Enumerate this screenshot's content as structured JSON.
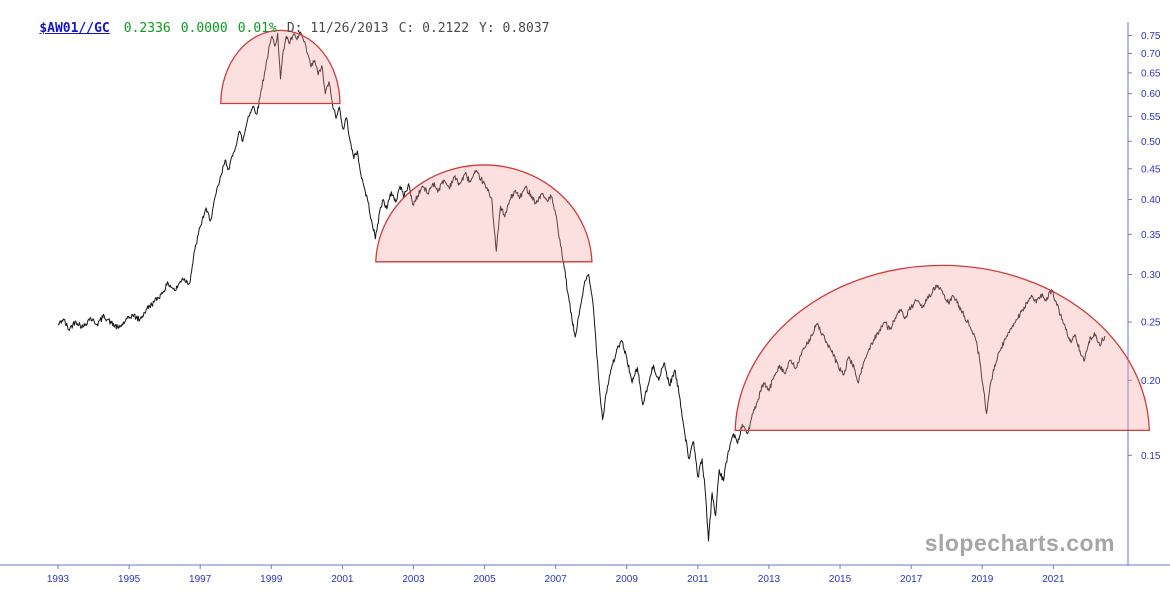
{
  "header": {
    "symbol": "$AW01//GC",
    "last": "0.2336",
    "change": "0.0000",
    "change_pct": "0.01%",
    "date": "D: 11/26/2013",
    "close": "C: 0.2122",
    "year_value": "Y: 0.8037",
    "symbol_color": "#1414c8",
    "quote_color": "#0a9a1e",
    "info_color": "#4a4a4a"
  },
  "watermark": {
    "text": "slopecharts.com",
    "color": "#a6a6a6"
  },
  "chart_data": {
    "type": "line",
    "symbol": "$AW01//GC",
    "y_scale": "log",
    "grid": false,
    "x_range": [
      1991.65,
      2023.1
    ],
    "y_range": [
      0.0985,
      0.772
    ],
    "x_ticks": [
      "1993",
      "1995",
      "1997",
      "1999",
      "2001",
      "2003",
      "2005",
      "2007",
      "2009",
      "2011",
      "2013",
      "2015",
      "2017",
      "2019",
      "2021"
    ],
    "y_ticks": [
      "0.75",
      "0.70",
      "0.65",
      "0.60",
      "0.55",
      "0.50",
      "0.45",
      "0.40",
      "0.35",
      "0.30",
      "0.25",
      "0.20",
      "0.15"
    ],
    "axis_color": "#6b79c8",
    "tick_label_color": "#2a35c0",
    "line_color": "#161616",
    "jitter": 0.011,
    "annotations": {
      "type": "domes",
      "stroke": "#d23a3a",
      "fill": "rgba(246,160,160,0.33)",
      "items": [
        {
          "x_start": 1997.58,
          "x_end": 2000.93,
          "base": 0.578,
          "peak": 0.765
        },
        {
          "x_start": 2001.94,
          "x_end": 2008.02,
          "base": 0.315,
          "peak": 0.462
        },
        {
          "x_start": 2012.05,
          "x_end": 2023.7,
          "base": 0.165,
          "peak": 0.315
        }
      ]
    },
    "points": [
      [
        1993.0,
        0.247
      ],
      [
        1993.15,
        0.253
      ],
      [
        1993.3,
        0.243
      ],
      [
        1993.5,
        0.251
      ],
      [
        1993.7,
        0.245
      ],
      [
        1993.9,
        0.254
      ],
      [
        1994.1,
        0.248
      ],
      [
        1994.3,
        0.256
      ],
      [
        1994.5,
        0.249
      ],
      [
        1994.7,
        0.244
      ],
      [
        1994.9,
        0.251
      ],
      [
        1995.1,
        0.257
      ],
      [
        1995.3,
        0.252
      ],
      [
        1995.5,
        0.263
      ],
      [
        1995.7,
        0.27
      ],
      [
        1995.9,
        0.278
      ],
      [
        1996.1,
        0.29
      ],
      [
        1996.3,
        0.282
      ],
      [
        1996.5,
        0.296
      ],
      [
        1996.7,
        0.29
      ],
      [
        1996.85,
        0.33
      ],
      [
        1997.0,
        0.36
      ],
      [
        1997.15,
        0.385
      ],
      [
        1997.3,
        0.37
      ],
      [
        1997.45,
        0.41
      ],
      [
        1997.6,
        0.44
      ],
      [
        1997.7,
        0.465
      ],
      [
        1997.8,
        0.45
      ],
      [
        1997.95,
        0.48
      ],
      [
        1998.1,
        0.52
      ],
      [
        1998.2,
        0.5
      ],
      [
        1998.35,
        0.55
      ],
      [
        1998.5,
        0.572
      ],
      [
        1998.6,
        0.556
      ],
      [
        1998.72,
        0.61
      ],
      [
        1998.82,
        0.655
      ],
      [
        1998.92,
        0.705
      ],
      [
        1999.02,
        0.748
      ],
      [
        1999.1,
        0.72
      ],
      [
        1999.18,
        0.757
      ],
      [
        1999.26,
        0.635
      ],
      [
        1999.34,
        0.71
      ],
      [
        1999.42,
        0.748
      ],
      [
        1999.52,
        0.728
      ],
      [
        1999.62,
        0.752
      ],
      [
        1999.72,
        0.738
      ],
      [
        1999.82,
        0.76
      ],
      [
        1999.92,
        0.732
      ],
      [
        2000.02,
        0.7
      ],
      [
        2000.12,
        0.665
      ],
      [
        2000.22,
        0.682
      ],
      [
        2000.32,
        0.645
      ],
      [
        2000.42,
        0.668
      ],
      [
        2000.52,
        0.6
      ],
      [
        2000.62,
        0.628
      ],
      [
        2000.72,
        0.578
      ],
      [
        2000.82,
        0.546
      ],
      [
        2000.92,
        0.57
      ],
      [
        2001.02,
        0.524
      ],
      [
        2001.12,
        0.547
      ],
      [
        2001.22,
        0.5
      ],
      [
        2001.32,
        0.468
      ],
      [
        2001.42,
        0.482
      ],
      [
        2001.52,
        0.44
      ],
      [
        2001.62,
        0.418
      ],
      [
        2001.72,
        0.396
      ],
      [
        2001.82,
        0.37
      ],
      [
        2001.93,
        0.344
      ],
      [
        2002.05,
        0.382
      ],
      [
        2002.15,
        0.4
      ],
      [
        2002.25,
        0.386
      ],
      [
        2002.38,
        0.412
      ],
      [
        2002.5,
        0.396
      ],
      [
        2002.62,
        0.421
      ],
      [
        2002.74,
        0.405
      ],
      [
        2002.86,
        0.425
      ],
      [
        2002.98,
        0.392
      ],
      [
        2003.12,
        0.406
      ],
      [
        2003.26,
        0.421
      ],
      [
        2003.4,
        0.409
      ],
      [
        2003.55,
        0.426
      ],
      [
        2003.7,
        0.414
      ],
      [
        2003.85,
        0.431
      ],
      [
        2004.0,
        0.419
      ],
      [
        2004.15,
        0.436
      ],
      [
        2004.3,
        0.424
      ],
      [
        2004.45,
        0.441
      ],
      [
        2004.6,
        0.428
      ],
      [
        2004.75,
        0.444
      ],
      [
        2004.9,
        0.433
      ],
      [
        2005.05,
        0.418
      ],
      [
        2005.2,
        0.402
      ],
      [
        2005.33,
        0.328
      ],
      [
        2005.45,
        0.39
      ],
      [
        2005.57,
        0.374
      ],
      [
        2005.7,
        0.398
      ],
      [
        2005.85,
        0.413
      ],
      [
        2006.0,
        0.403
      ],
      [
        2006.15,
        0.419
      ],
      [
        2006.3,
        0.408
      ],
      [
        2006.45,
        0.394
      ],
      [
        2006.6,
        0.409
      ],
      [
        2006.75,
        0.399
      ],
      [
        2006.88,
        0.404
      ],
      [
        2007.0,
        0.378
      ],
      [
        2007.1,
        0.345
      ],
      [
        2007.22,
        0.315
      ],
      [
        2007.34,
        0.28
      ],
      [
        2007.46,
        0.252
      ],
      [
        2007.55,
        0.236
      ],
      [
        2007.68,
        0.262
      ],
      [
        2007.8,
        0.288
      ],
      [
        2007.92,
        0.3
      ],
      [
        2008.04,
        0.272
      ],
      [
        2008.12,
        0.238
      ],
      [
        2008.22,
        0.198
      ],
      [
        2008.32,
        0.172
      ],
      [
        2008.42,
        0.19
      ],
      [
        2008.55,
        0.208
      ],
      [
        2008.7,
        0.222
      ],
      [
        2008.85,
        0.233
      ],
      [
        2009.0,
        0.218
      ],
      [
        2009.15,
        0.198
      ],
      [
        2009.3,
        0.21
      ],
      [
        2009.45,
        0.182
      ],
      [
        2009.6,
        0.196
      ],
      [
        2009.75,
        0.212
      ],
      [
        2009.9,
        0.2
      ],
      [
        2010.05,
        0.214
      ],
      [
        2010.2,
        0.196
      ],
      [
        2010.35,
        0.208
      ],
      [
        2010.5,
        0.186
      ],
      [
        2010.62,
        0.165
      ],
      [
        2010.75,
        0.148
      ],
      [
        2010.88,
        0.158
      ],
      [
        2011.0,
        0.138
      ],
      [
        2011.12,
        0.148
      ],
      [
        2011.22,
        0.128
      ],
      [
        2011.3,
        0.108
      ],
      [
        2011.4,
        0.13
      ],
      [
        2011.5,
        0.119
      ],
      [
        2011.6,
        0.142
      ],
      [
        2011.72,
        0.136
      ],
      [
        2011.85,
        0.152
      ],
      [
        2012.0,
        0.163
      ],
      [
        2012.12,
        0.157
      ],
      [
        2012.25,
        0.169
      ],
      [
        2012.4,
        0.163
      ],
      [
        2012.55,
        0.176
      ],
      [
        2012.7,
        0.186
      ],
      [
        2012.85,
        0.198
      ],
      [
        2013.0,
        0.192
      ],
      [
        2013.15,
        0.204
      ],
      [
        2013.3,
        0.212
      ],
      [
        2013.45,
        0.205
      ],
      [
        2013.6,
        0.216
      ],
      [
        2013.75,
        0.209
      ],
      [
        2013.9,
        0.22
      ],
      [
        2014.05,
        0.229
      ],
      [
        2014.2,
        0.238
      ],
      [
        2014.35,
        0.248
      ],
      [
        2014.5,
        0.239
      ],
      [
        2014.65,
        0.229
      ],
      [
        2014.8,
        0.221
      ],
      [
        2014.95,
        0.211
      ],
      [
        2015.1,
        0.204
      ],
      [
        2015.25,
        0.219
      ],
      [
        2015.4,
        0.209
      ],
      [
        2015.52,
        0.198
      ],
      [
        2015.65,
        0.213
      ],
      [
        2015.8,
        0.224
      ],
      [
        2015.95,
        0.234
      ],
      [
        2016.1,
        0.242
      ],
      [
        2016.25,
        0.25
      ],
      [
        2016.4,
        0.243
      ],
      [
        2016.55,
        0.254
      ],
      [
        2016.7,
        0.261
      ],
      [
        2016.85,
        0.254
      ],
      [
        2017.0,
        0.265
      ],
      [
        2017.15,
        0.271
      ],
      [
        2017.3,
        0.264
      ],
      [
        2017.45,
        0.274
      ],
      [
        2017.6,
        0.281
      ],
      [
        2017.75,
        0.288
      ],
      [
        2017.9,
        0.278
      ],
      [
        2018.05,
        0.269
      ],
      [
        2018.2,
        0.276
      ],
      [
        2018.35,
        0.266
      ],
      [
        2018.5,
        0.256
      ],
      [
        2018.65,
        0.246
      ],
      [
        2018.8,
        0.236
      ],
      [
        2018.92,
        0.218
      ],
      [
        2019.02,
        0.196
      ],
      [
        2019.12,
        0.176
      ],
      [
        2019.22,
        0.196
      ],
      [
        2019.35,
        0.212
      ],
      [
        2019.5,
        0.224
      ],
      [
        2019.65,
        0.234
      ],
      [
        2019.8,
        0.244
      ],
      [
        2019.95,
        0.252
      ],
      [
        2020.1,
        0.26
      ],
      [
        2020.25,
        0.269
      ],
      [
        2020.4,
        0.276
      ],
      [
        2020.52,
        0.269
      ],
      [
        2020.65,
        0.278
      ],
      [
        2020.8,
        0.271
      ],
      [
        2020.95,
        0.283
      ],
      [
        2021.08,
        0.27
      ],
      [
        2021.2,
        0.257
      ],
      [
        2021.35,
        0.243
      ],
      [
        2021.5,
        0.231
      ],
      [
        2021.62,
        0.238
      ],
      [
        2021.75,
        0.224
      ],
      [
        2021.88,
        0.216
      ],
      [
        2022.0,
        0.232
      ],
      [
        2022.15,
        0.24
      ],
      [
        2022.3,
        0.229
      ],
      [
        2022.45,
        0.237
      ]
    ]
  }
}
